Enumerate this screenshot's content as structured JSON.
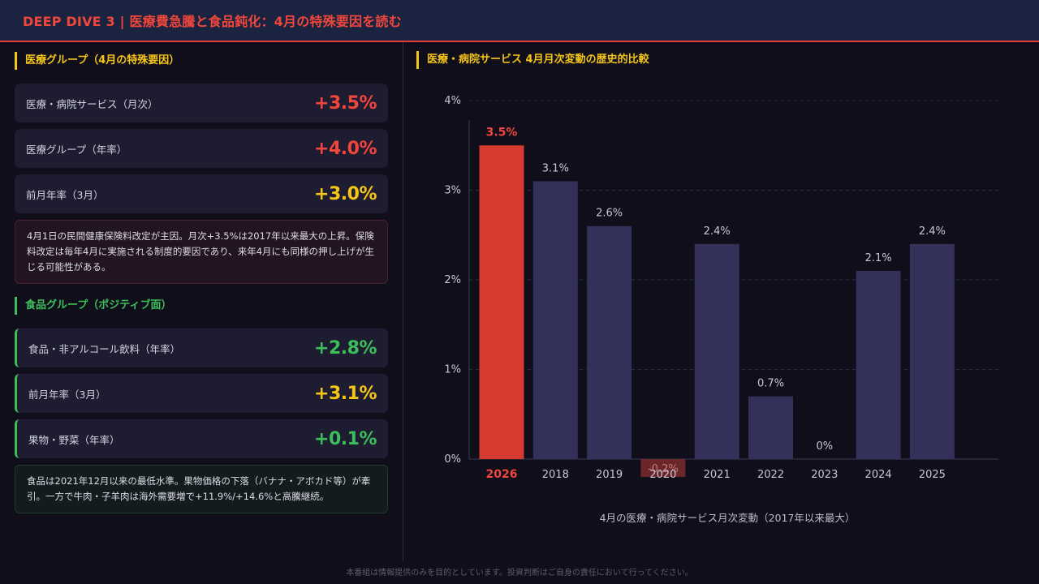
{
  "header": {
    "title": "DEEP DIVE 3 | 医療費急騰と食品鈍化：4月の特殊要因を読む"
  },
  "medical": {
    "section_title": "医療グループ（4月の特殊要因）",
    "cards": [
      {
        "label": "医療・病院サービス（月次）",
        "value": "+3.5%"
      },
      {
        "label": "医療グループ（年率）",
        "value": "+4.0%"
      },
      {
        "label": "前月年率（3月）",
        "value": "+3.0%"
      }
    ],
    "note": "4月1日の民間健康保険料改定が主因。月次+3.5%は2017年以来最大の上昇。保険料改定は毎年4月に実施される制度的要因であり、来年4月にも同様の押し上げが生じる可能性がある。"
  },
  "food": {
    "section_title": "食品グループ（ポジティブ面）",
    "cards": [
      {
        "label": "食品・非アルコール飲料（年率）",
        "value": "+2.8%"
      },
      {
        "label": "前月年率（3月）",
        "value": "+3.1%"
      },
      {
        "label": "果物・野菜（年率）",
        "value": "+0.1%"
      }
    ],
    "note": "食品は2021年12月以来の最低水準。果物価格の下落（バナナ・アボカド等）が牽引。一方で牛肉・子羊肉は海外需要増で+11.9%/+14.6%と高騰継続。"
  },
  "colors": {
    "accent_red": "#f0463c",
    "accent_yellow": "#f5c518",
    "accent_green": "#3cbf5a",
    "bar": "#33315a",
    "bar_highlight": "#d63a30"
  },
  "chart_title": "医療・病院サービス 4月月次変動の歴史的比較",
  "chart_data": {
    "type": "bar",
    "categories": [
      "2026",
      "2018",
      "2019",
      "2020",
      "2021",
      "2022",
      "2023",
      "2024",
      "2025"
    ],
    "values": [
      3.5,
      3.1,
      2.6,
      -0.2,
      2.4,
      0.7,
      0.0,
      2.1,
      2.4
    ],
    "value_labels": [
      "3.5%",
      "3.1%",
      "2.6%",
      "-0.2%",
      "2.4%",
      "0.7%",
      "0%",
      "2.1%",
      "2.4%"
    ],
    "highlight_index": 0,
    "title": "",
    "xlabel": "4月の医療・病院サービス月次変動（2017年以来最大）",
    "ylabel": "",
    "ylim": [
      0,
      4
    ],
    "y_ticks": [
      "0%",
      "1%",
      "2%",
      "3%",
      "4%"
    ],
    "grid": true
  },
  "footer": {
    "disclaimer": "本番組は情報提供のみを目的としています。投資判断はご自身の責任において行ってください。"
  }
}
